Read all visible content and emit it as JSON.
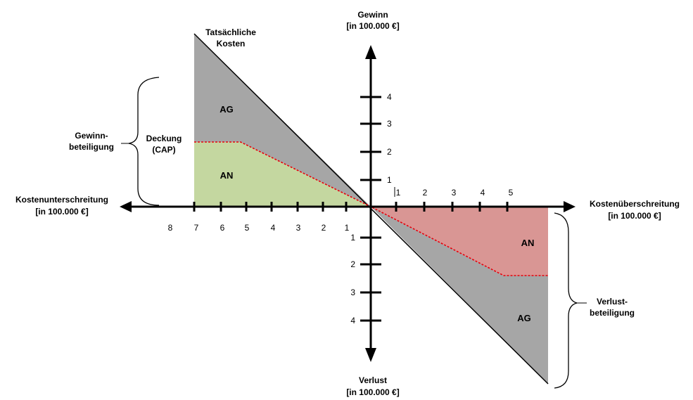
{
  "title": {
    "gewinn_line1": "Gewinn",
    "gewinn_line2": "[in 100.000 €]",
    "verlust_line1": "Verlust",
    "verlust_line2": "[in 100.000 €]",
    "kosten_unter_line1": "Kostenunterschreitung",
    "kosten_unter_line2": "[in 100.000 €]",
    "kosten_ueber_line1": "Kostenüberschreitung",
    "kosten_ueber_line2": "[in 100.000 €]"
  },
  "labels": {
    "tatsaechliche_line1": "Tatsächliche",
    "tatsaechliche_line2": "Kosten",
    "gewinnbeteiligung_line1": "Gewinn-",
    "gewinnbeteiligung_line2": "beteiligung",
    "verlustbeteiligung_line1": "Verlust-",
    "verlustbeteiligung_line2": "beteiligung",
    "deckung_line1": "Deckung",
    "deckung_line2": "(CAP)",
    "ag_top": "AG",
    "an_top": "AN",
    "an_bottom": "AN",
    "ag_bottom": "AG"
  },
  "x_left_ticks": [
    "8",
    "7",
    "6",
    "5",
    "4",
    "3",
    "2",
    "1"
  ],
  "x_right_ticks": [
    "1",
    "2",
    "3",
    "4",
    "5"
  ],
  "y_up_ticks": [
    "4",
    "3",
    "2",
    "1"
  ],
  "y_down_ticks": [
    "1",
    "2",
    "3",
    "4"
  ],
  "colors": {
    "grey_region": "#a6a6a6",
    "green_region": "#c4d7a0",
    "red_region": "#d99694",
    "cap_line": "#e8000b",
    "axis": "#000000"
  }
}
